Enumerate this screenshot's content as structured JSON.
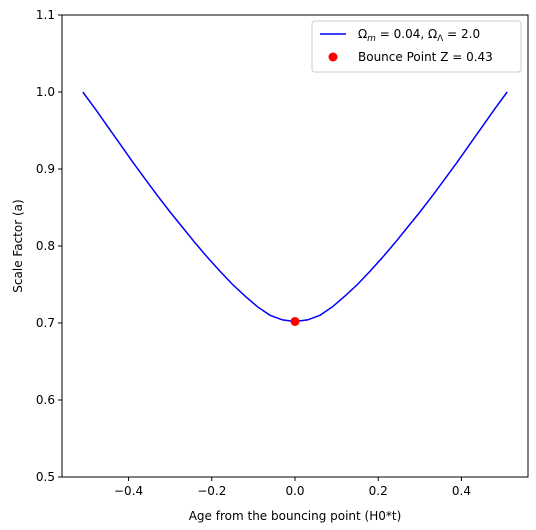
{
  "chart_data": {
    "type": "line",
    "title": "",
    "xlabel": "Age from the bouncing point (H0*t)",
    "ylabel": "Scale Factor (a)",
    "xlim": [
      -0.56,
      0.56
    ],
    "ylim": [
      0.5,
      1.1
    ],
    "x_ticks": [
      -0.4,
      -0.2,
      0.0,
      0.2,
      0.4
    ],
    "x_tick_labels": [
      "−0.4",
      "−0.2",
      "0.0",
      "0.2",
      "0.4"
    ],
    "y_ticks": [
      0.5,
      0.6,
      0.7,
      0.8,
      0.9,
      1.0,
      1.1
    ],
    "y_tick_labels": [
      "0.5",
      "0.6",
      "0.7",
      "0.8",
      "0.9",
      "1.0",
      "1.1"
    ],
    "grid": false,
    "legend_position": "top-right",
    "series": [
      {
        "name": "Ωm = 0.04, ΩΛ = 2.0",
        "color": "#0000ff",
        "type": "line",
        "x": [
          -0.51,
          -0.48,
          -0.45,
          -0.42,
          -0.39,
          -0.36,
          -0.33,
          -0.3,
          -0.27,
          -0.24,
          -0.21,
          -0.18,
          -0.15,
          -0.12,
          -0.09,
          -0.06,
          -0.03,
          0.0,
          0.03,
          0.06,
          0.09,
          0.12,
          0.15,
          0.18,
          0.21,
          0.24,
          0.27,
          0.3,
          0.33,
          0.36,
          0.39,
          0.42,
          0.45,
          0.48,
          0.51
        ],
        "y": [
          1.0,
          0.978,
          0.955,
          0.932,
          0.909,
          0.887,
          0.865,
          0.844,
          0.824,
          0.804,
          0.785,
          0.767,
          0.75,
          0.735,
          0.721,
          0.71,
          0.704,
          0.702,
          0.704,
          0.71,
          0.721,
          0.735,
          0.75,
          0.767,
          0.785,
          0.804,
          0.824,
          0.844,
          0.865,
          0.887,
          0.909,
          0.932,
          0.955,
          0.978,
          1.0
        ]
      },
      {
        "name": "Bounce Point Z = 0.43",
        "color": "#ff0000",
        "type": "scatter",
        "x": [
          0.0
        ],
        "y": [
          0.702
        ]
      }
    ]
  }
}
